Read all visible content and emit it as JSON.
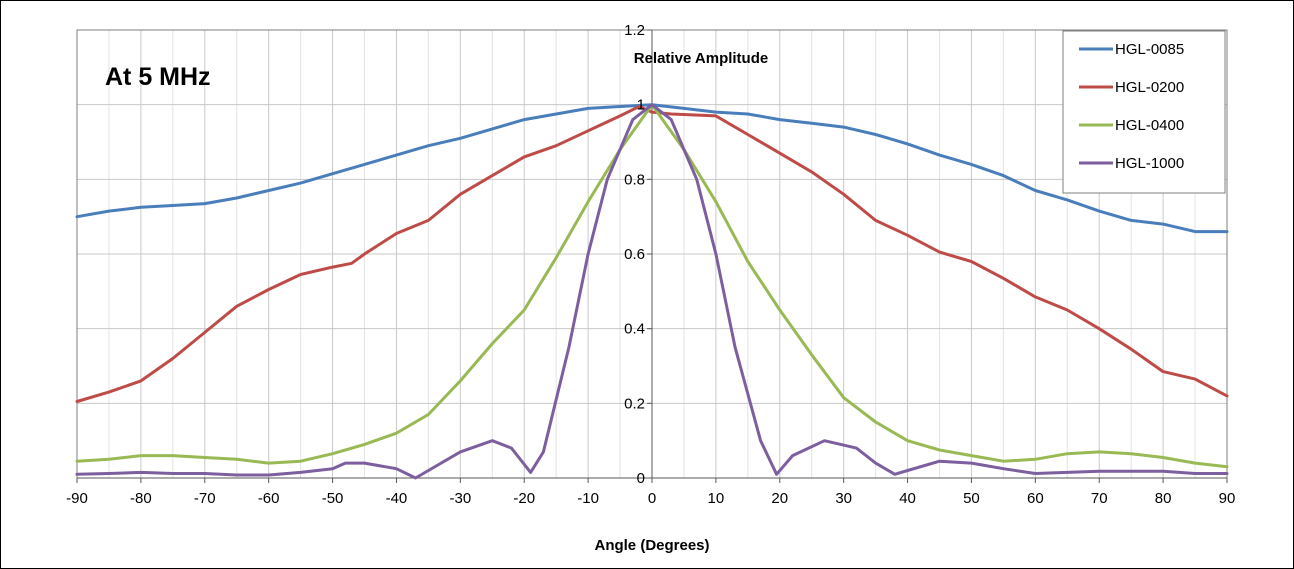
{
  "chart_data": {
    "type": "line",
    "title": "",
    "annotation": "At 5 MHz",
    "xlabel": "Angle (Degrees)",
    "ylabel": "Relative Amplitude",
    "xlim": [
      -90,
      90
    ],
    "ylim": [
      0,
      1.2
    ],
    "x_ticks": [
      -90,
      -80,
      -70,
      -60,
      -50,
      -40,
      -30,
      -20,
      -10,
      0,
      10,
      20,
      30,
      40,
      50,
      60,
      70,
      80,
      90
    ],
    "x_tick_labels": [
      "-90",
      "-80",
      "-70",
      "-60",
      "-50",
      "-40",
      "-30",
      "-20",
      "-10",
      "0",
      "10",
      "20",
      "30",
      "40",
      "50",
      "60",
      "70",
      "80",
      "90"
    ],
    "y_ticks": [
      0,
      0.2,
      0.4,
      0.6,
      0.8,
      1,
      1.2
    ],
    "y_tick_labels": [
      "0",
      "0.2",
      "0.4",
      "0.6",
      "0.8",
      "1",
      "1.2"
    ],
    "grid": true,
    "legend_position": "top-right",
    "series": [
      {
        "name": "HGL-0085",
        "color": "#4a7ebb",
        "points": [
          [
            -90,
            0.7
          ],
          [
            -85,
            0.715
          ],
          [
            -80,
            0.725
          ],
          [
            -75,
            0.73
          ],
          [
            -70,
            0.735
          ],
          [
            -65,
            0.75
          ],
          [
            -60,
            0.77
          ],
          [
            -55,
            0.79
          ],
          [
            -50,
            0.815
          ],
          [
            -45,
            0.84
          ],
          [
            -40,
            0.865
          ],
          [
            -35,
            0.89
          ],
          [
            -30,
            0.91
          ],
          [
            -25,
            0.935
          ],
          [
            -20,
            0.96
          ],
          [
            -15,
            0.975
          ],
          [
            -10,
            0.99
          ],
          [
            -5,
            0.995
          ],
          [
            0,
            1.0
          ],
          [
            5,
            0.99
          ],
          [
            10,
            0.98
          ],
          [
            15,
            0.975
          ],
          [
            20,
            0.96
          ],
          [
            25,
            0.95
          ],
          [
            30,
            0.94
          ],
          [
            35,
            0.92
          ],
          [
            40,
            0.895
          ],
          [
            45,
            0.865
          ],
          [
            50,
            0.84
          ],
          [
            55,
            0.81
          ],
          [
            60,
            0.77
          ],
          [
            65,
            0.745
          ],
          [
            70,
            0.715
          ],
          [
            75,
            0.69
          ],
          [
            80,
            0.68
          ],
          [
            85,
            0.66
          ],
          [
            90,
            0.66
          ]
        ]
      },
      {
        "name": "HGL-0200",
        "color": "#be4b48",
        "points": [
          [
            -90,
            0.205
          ],
          [
            -85,
            0.23
          ],
          [
            -80,
            0.26
          ],
          [
            -75,
            0.32
          ],
          [
            -70,
            0.39
          ],
          [
            -65,
            0.46
          ],
          [
            -60,
            0.505
          ],
          [
            -55,
            0.545
          ],
          [
            -50,
            0.565
          ],
          [
            -47,
            0.575
          ],
          [
            -45,
            0.6
          ],
          [
            -40,
            0.655
          ],
          [
            -35,
            0.69
          ],
          [
            -30,
            0.76
          ],
          [
            -25,
            0.81
          ],
          [
            -20,
            0.86
          ],
          [
            -15,
            0.89
          ],
          [
            -10,
            0.93
          ],
          [
            -5,
            0.97
          ],
          [
            -2,
            0.995
          ],
          [
            0,
            0.98
          ],
          [
            3,
            0.975
          ],
          [
            10,
            0.97
          ],
          [
            15,
            0.92
          ],
          [
            20,
            0.87
          ],
          [
            25,
            0.82
          ],
          [
            30,
            0.76
          ],
          [
            35,
            0.69
          ],
          [
            40,
            0.65
          ],
          [
            45,
            0.605
          ],
          [
            50,
            0.58
          ],
          [
            55,
            0.535
          ],
          [
            60,
            0.485
          ],
          [
            65,
            0.45
          ],
          [
            70,
            0.4
          ],
          [
            75,
            0.345
          ],
          [
            80,
            0.285
          ],
          [
            85,
            0.265
          ],
          [
            90,
            0.22
          ]
        ]
      },
      {
        "name": "HGL-0400",
        "color": "#98b954",
        "points": [
          [
            -90,
            0.045
          ],
          [
            -85,
            0.05
          ],
          [
            -80,
            0.06
          ],
          [
            -75,
            0.06
          ],
          [
            -70,
            0.055
          ],
          [
            -65,
            0.05
          ],
          [
            -60,
            0.04
          ],
          [
            -55,
            0.045
          ],
          [
            -50,
            0.065
          ],
          [
            -45,
            0.09
          ],
          [
            -40,
            0.12
          ],
          [
            -35,
            0.17
          ],
          [
            -30,
            0.26
          ],
          [
            -25,
            0.36
          ],
          [
            -20,
            0.45
          ],
          [
            -15,
            0.59
          ],
          [
            -10,
            0.74
          ],
          [
            -5,
            0.88
          ],
          [
            0,
            1.0
          ],
          [
            5,
            0.88
          ],
          [
            10,
            0.74
          ],
          [
            15,
            0.58
          ],
          [
            20,
            0.45
          ],
          [
            25,
            0.33
          ],
          [
            30,
            0.215
          ],
          [
            35,
            0.15
          ],
          [
            40,
            0.1
          ],
          [
            45,
            0.075
          ],
          [
            50,
            0.06
          ],
          [
            55,
            0.045
          ],
          [
            60,
            0.05
          ],
          [
            65,
            0.065
          ],
          [
            70,
            0.07
          ],
          [
            75,
            0.065
          ],
          [
            80,
            0.055
          ],
          [
            85,
            0.04
          ],
          [
            90,
            0.03
          ]
        ]
      },
      {
        "name": "HGL-1000",
        "color": "#7d5fa0",
        "points": [
          [
            -90,
            0.01
          ],
          [
            -85,
            0.012
          ],
          [
            -80,
            0.015
          ],
          [
            -75,
            0.012
          ],
          [
            -70,
            0.012
          ],
          [
            -65,
            0.008
          ],
          [
            -60,
            0.008
          ],
          [
            -55,
            0.015
          ],
          [
            -50,
            0.025
          ],
          [
            -48,
            0.04
          ],
          [
            -45,
            0.04
          ],
          [
            -40,
            0.025
          ],
          [
            -37,
            0.0
          ],
          [
            -35,
            0.02
          ],
          [
            -30,
            0.07
          ],
          [
            -25,
            0.1
          ],
          [
            -22,
            0.08
          ],
          [
            -19,
            0.015
          ],
          [
            -17,
            0.07
          ],
          [
            -13,
            0.35
          ],
          [
            -10,
            0.6
          ],
          [
            -7,
            0.8
          ],
          [
            -3,
            0.96
          ],
          [
            0,
            1.0
          ],
          [
            3,
            0.96
          ],
          [
            7,
            0.8
          ],
          [
            10,
            0.6
          ],
          [
            13,
            0.35
          ],
          [
            17,
            0.1
          ],
          [
            19.5,
            0.01
          ],
          [
            22,
            0.06
          ],
          [
            27,
            0.1
          ],
          [
            32,
            0.08
          ],
          [
            35,
            0.04
          ],
          [
            38,
            0.01
          ],
          [
            40,
            0.02
          ],
          [
            45,
            0.045
          ],
          [
            50,
            0.04
          ],
          [
            55,
            0.025
          ],
          [
            60,
            0.012
          ],
          [
            65,
            0.015
          ],
          [
            70,
            0.018
          ],
          [
            75,
            0.018
          ],
          [
            80,
            0.018
          ],
          [
            85,
            0.012
          ],
          [
            90,
            0.012
          ]
        ]
      }
    ]
  }
}
